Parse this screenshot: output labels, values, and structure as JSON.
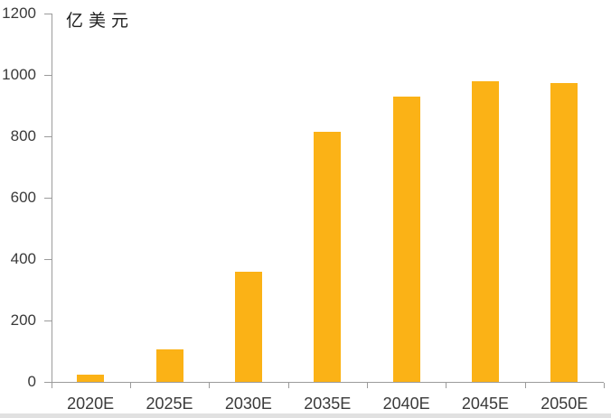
{
  "chart_data": {
    "type": "bar",
    "title": "",
    "xlabel": "",
    "ylabel": "亿美元",
    "categories": [
      "2020E",
      "2025E",
      "2030E",
      "2035E",
      "2040E",
      "2045E",
      "2050E"
    ],
    "values": [
      25,
      105,
      358,
      815,
      930,
      980,
      975
    ],
    "ylim": [
      0,
      1200
    ],
    "yticks": [
      0,
      200,
      400,
      600,
      800,
      1000,
      1200
    ],
    "grid": false,
    "legend": "none",
    "bar_color": "#FBB216",
    "axis_color": "#9B9B9B",
    "label_color": "#3A3A3A",
    "background_color": "#FFFFFF"
  }
}
